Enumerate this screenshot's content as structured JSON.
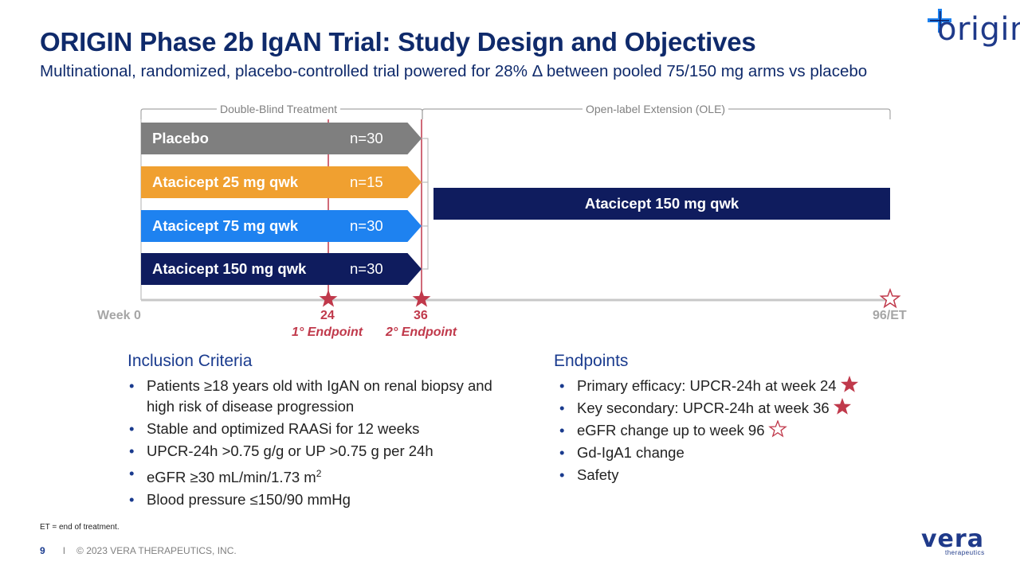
{
  "header": {
    "title": "ORIGIN Phase 2b IgAN Trial: Study Design and Objectives",
    "subtitle": "Multinational, randomized, placebo-controlled trial powered for 28% Δ between pooled 75/150 mg arms vs placebo",
    "logo_text": "origin"
  },
  "design": {
    "phases": {
      "double_blind": "Double-Blind Treatment",
      "ole": "Open-label Extension (OLE)"
    },
    "arms": [
      {
        "name": "Placebo",
        "n": "n=30",
        "color": "#7f7f7f"
      },
      {
        "name": "Atacicept 25 mg qwk",
        "n": "n=15",
        "color": "#f0a030"
      },
      {
        "name": "Atacicept 75 mg qwk",
        "n": "n=30",
        "color": "#1e82f0"
      },
      {
        "name": "Atacicept 150 mg qwk",
        "n": "n=30",
        "color": "#0f1c5e"
      }
    ],
    "ole_arm": "Atacicept 150 mg qwk",
    "timeline": {
      "week0": "Week 0",
      "week24": "24",
      "week36": "36",
      "week96": "96/ET",
      "endpoint1": "1° Endpoint",
      "endpoint2": "2° Endpoint"
    },
    "colors": {
      "marker": "#c0394b",
      "navy": "#0f1c5e"
    }
  },
  "inclusion": {
    "title": "Inclusion Criteria",
    "items": [
      "Patients ≥18 years old with IgAN on renal biopsy and high risk of disease progression",
      "Stable and optimized RAASi for 12 weeks",
      "UPCR-24h >0.75 g/g or UP >0.75 g per 24h",
      "eGFR ≥30 mL/min/1.73 m",
      "Blood pressure ≤150/90 mmHg"
    ],
    "egfr_superscript": "2"
  },
  "endpoints": {
    "title": "Endpoints",
    "items": [
      {
        "text": "Primary efficacy: UPCR-24h at week 24",
        "star": "filled"
      },
      {
        "text": "Key secondary: UPCR-24h at week 36",
        "star": "filled"
      },
      {
        "text": "eGFR change up to week 96",
        "star": "outline"
      },
      {
        "text": "Gd-IgA1 change",
        "star": "none"
      },
      {
        "text": "Safety",
        "star": "none"
      }
    ]
  },
  "footer": {
    "footnote": "ET = end of treatment.",
    "page": "9",
    "separator": "I",
    "copyright": "© 2023 VERA THERAPEUTICS, INC.",
    "brand": "vera",
    "brand_sub": "therapeutics"
  }
}
